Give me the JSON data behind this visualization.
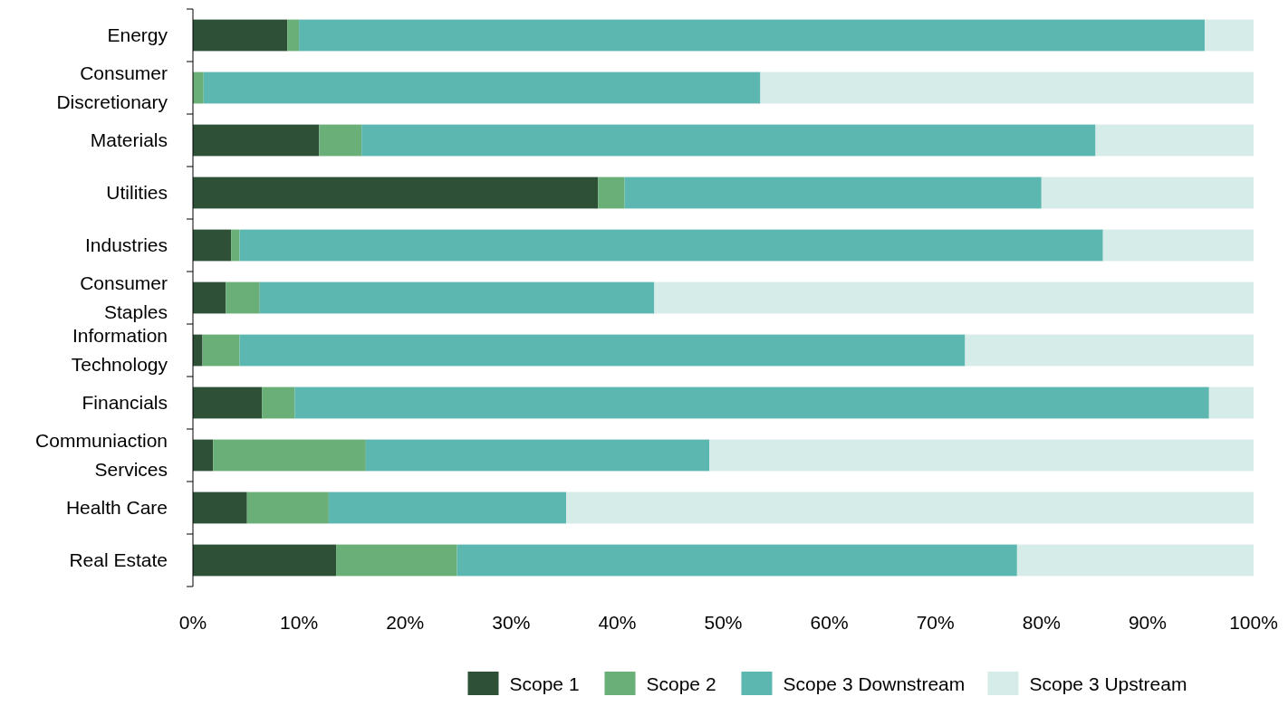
{
  "chart_data": {
    "type": "bar",
    "orientation": "horizontal",
    "stacked": true,
    "categories": [
      "Energy",
      "Consumer Discretionary",
      "Materials ",
      "Utilities",
      "Industries",
      "Consumer Staples",
      "Information Technology",
      "Financials",
      "Communiaction Services",
      "Health Care",
      "Real Estate"
    ],
    "series": [
      {
        "name": "Scope 1",
        "color": "#2d5037",
        "values": [
          8.9,
          null,
          11.9,
          38.2,
          3.6,
          3.1,
          0.9,
          6.5,
          1.9,
          5.1,
          13.5
        ]
      },
      {
        "name": "Scope 2",
        "color": "#6aaf78",
        "values": [
          1.1,
          1.0,
          4.0,
          2.5,
          0.8,
          3.2,
          3.5,
          3.1,
          14.4,
          7.7,
          11.4
        ]
      },
      {
        "name": "Scope 3 Downstream",
        "color": "#5bb7b0",
        "values": [
          85.4,
          52.5,
          69.2,
          39.3,
          81.4,
          37.2,
          68.4,
          86.2,
          32.4,
          22.4,
          52.8
        ]
      },
      {
        "name": "Scope 3 Upstream",
        "color": "#d6ece9",
        "values": [
          4.6,
          46.5,
          14.9,
          20.0,
          14.2,
          56.5,
          27.2,
          4.2,
          51.3,
          64.8,
          22.3
        ]
      }
    ],
    "xlim": [
      0,
      100
    ],
    "xticks": [
      {
        "value": 0,
        "label": "0%"
      },
      {
        "value": 10,
        "label": "10%"
      },
      {
        "value": 20,
        "label": "20%"
      },
      {
        "value": 30,
        "label": "30%"
      },
      {
        "value": 40,
        "label": "40%"
      },
      {
        "value": 50,
        "label": "50%"
      },
      {
        "value": 60,
        "label": "60%"
      },
      {
        "value": 70,
        "label": "70%"
      },
      {
        "value": 80,
        "label": "80%"
      },
      {
        "value": 90,
        "label": "90%"
      },
      {
        "value": 100,
        "label": "100%"
      }
    ],
    "grid": false,
    "legend": "bottom"
  }
}
